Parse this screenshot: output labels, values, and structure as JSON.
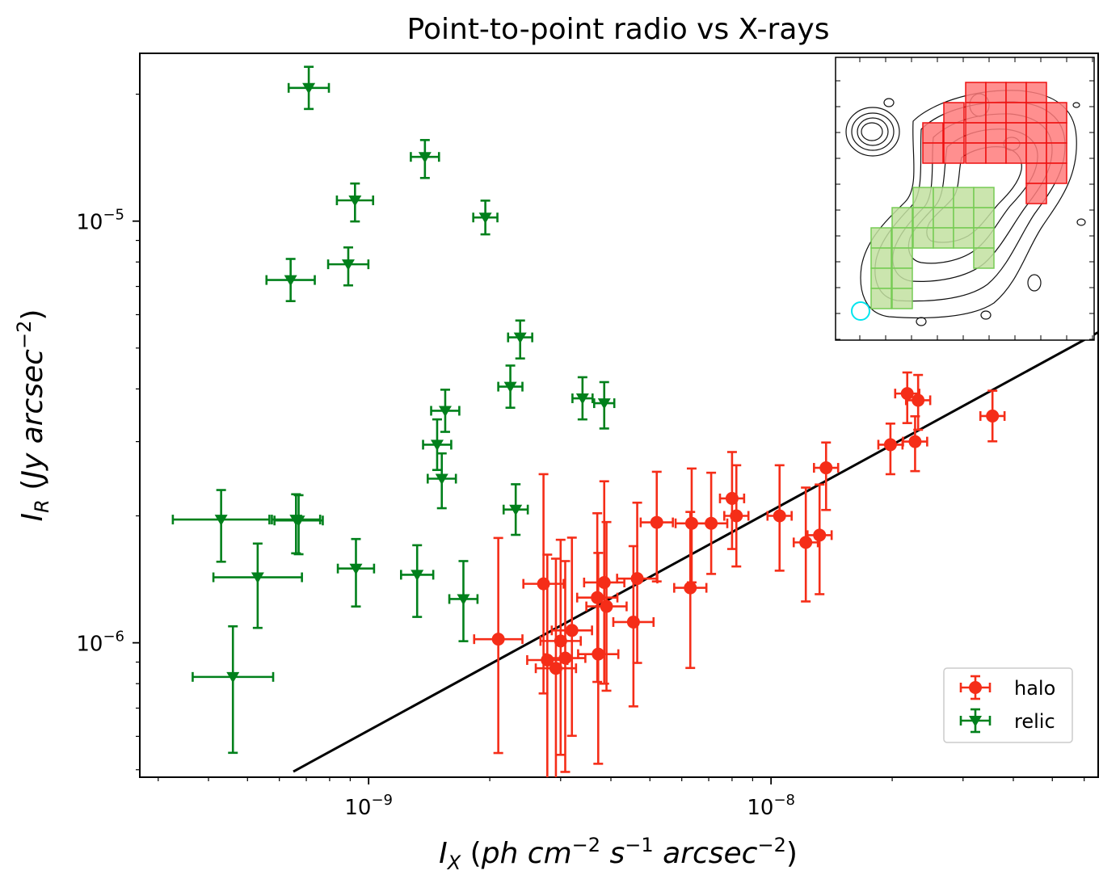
{
  "chart_data": {
    "type": "scatter",
    "title": "Point-to-point radio vs X-rays",
    "xlabel": "I_X (ph cm^-2 s^-1 arcsec^-2)",
    "ylabel": "I_R (Jy arcsec^-2)",
    "xscale": "log",
    "yscale": "log",
    "xlim": [
      2.7e-10,
      6.5e-08
    ],
    "ylim": [
      4.8e-07,
      2.5e-05
    ],
    "x_tick_labels": [
      {
        "value": 1e-09,
        "base": "10",
        "exp": "−9"
      },
      {
        "value": 1e-08,
        "base": "10",
        "exp": "−8"
      }
    ],
    "y_tick_labels": [
      {
        "value": 1e-06,
        "base": "10",
        "exp": "−6"
      },
      {
        "value": 1e-05,
        "base": "10",
        "exp": "−5"
      }
    ],
    "legend": {
      "position": "lower-right",
      "entries": [
        "halo",
        "relic"
      ]
    },
    "colors": {
      "halo": "#f52d18",
      "relic": "#00801b",
      "fit": "#000000"
    },
    "fit_line": {
      "x": [
        6.5e-10,
        6.5e-08
      ],
      "y": [
        4.95e-07,
        5.45e-06
      ]
    },
    "series": [
      {
        "name": "halo",
        "marker": "circle",
        "points": [
          {
            "x": 2.1e-09,
            "y": 1.02e-06,
            "ex": 0.06,
            "ey_lo": 0.27,
            "ey_hi": 0.24
          },
          {
            "x": 2.72e-09,
            "y": 1.38e-06,
            "ex": 0.05,
            "ey_lo": 0.26,
            "ey_hi": 0.26
          },
          {
            "x": 2.78e-09,
            "y": 9.1e-07,
            "ex": 0.05,
            "ey_lo": 0.29,
            "ey_hi": 0.25
          },
          {
            "x": 2.92e-09,
            "y": 8.7e-07,
            "ex": 0.05,
            "ey_lo": 0.32,
            "ey_hi": 0.26
          },
          {
            "x": 3e-09,
            "y": 1.01e-06,
            "ex": 0.05,
            "ey_lo": 0.27,
            "ey_hi": 0.24
          },
          {
            "x": 3.08e-09,
            "y": 9.2e-07,
            "ex": 0.05,
            "ey_lo": 0.27,
            "ey_hi": 0.23
          },
          {
            "x": 3.2e-09,
            "y": 1.07e-06,
            "ex": 0.05,
            "ey_lo": 0.25,
            "ey_hi": 0.22
          },
          {
            "x": 3.7e-09,
            "y": 1.28e-06,
            "ex": 0.05,
            "ey_lo": 0.2,
            "ey_hi": 0.2
          },
          {
            "x": 3.72e-09,
            "y": 9.4e-07,
            "ex": 0.05,
            "ey_lo": 0.26,
            "ey_hi": 0.24
          },
          {
            "x": 3.85e-09,
            "y": 1.39e-06,
            "ex": 0.05,
            "ey_lo": 0.24,
            "ey_hi": 0.24
          },
          {
            "x": 3.9e-09,
            "y": 1.22e-06,
            "ex": 0.05,
            "ey_lo": 0.2,
            "ey_hi": 0.2
          },
          {
            "x": 4.55e-09,
            "y": 1.12e-06,
            "ex": 0.05,
            "ey_lo": 0.2,
            "ey_hi": 0.18
          },
          {
            "x": 4.65e-09,
            "y": 1.42e-06,
            "ex": 0.05,
            "ey_lo": 0.2,
            "ey_hi": 0.18
          },
          {
            "x": 5.2e-09,
            "y": 1.93e-06,
            "ex": 0.04,
            "ey_lo": 0.14,
            "ey_hi": 0.12
          },
          {
            "x": 6.3e-09,
            "y": 1.35e-06,
            "ex": 0.04,
            "ey_lo": 0.19,
            "ey_hi": 0.18
          },
          {
            "x": 6.35e-09,
            "y": 1.92e-06,
            "ex": 0.04,
            "ey_lo": 0.14,
            "ey_hi": 0.13
          },
          {
            "x": 7.1e-09,
            "y": 1.92e-06,
            "ex": 0.04,
            "ey_lo": 0.12,
            "ey_hi": 0.12
          },
          {
            "x": 8e-09,
            "y": 2.2e-06,
            "ex": 0.03,
            "ey_lo": 0.12,
            "ey_hi": 0.11
          },
          {
            "x": 8.2e-09,
            "y": 2e-06,
            "ex": 0.03,
            "ey_lo": 0.12,
            "ey_hi": 0.12
          },
          {
            "x": 1.05e-08,
            "y": 2e-06,
            "ex": 0.03,
            "ey_lo": 0.13,
            "ey_hi": 0.12
          },
          {
            "x": 1.22e-08,
            "y": 1.73e-06,
            "ex": 0.03,
            "ey_lo": 0.14,
            "ey_hi": 0.13
          },
          {
            "x": 1.32e-08,
            "y": 1.8e-06,
            "ex": 0.03,
            "ey_lo": 0.14,
            "ey_hi": 0.12
          },
          {
            "x": 1.37e-08,
            "y": 2.6e-06,
            "ex": 0.03,
            "ey_lo": 0.1,
            "ey_hi": 0.06
          },
          {
            "x": 1.98e-08,
            "y": 2.95e-06,
            "ex": 0.03,
            "ey_lo": 0.07,
            "ey_hi": 0.05
          },
          {
            "x": 2.18e-08,
            "y": 3.9e-06,
            "ex": 0.03,
            "ey_lo": 0.07,
            "ey_hi": 0.05
          },
          {
            "x": 2.28e-08,
            "y": 3e-06,
            "ex": 0.03,
            "ey_lo": 0.07,
            "ey_hi": 0.06
          },
          {
            "x": 2.32e-08,
            "y": 3.76e-06,
            "ex": 0.03,
            "ey_lo": 0.07,
            "ey_hi": 0.06
          },
          {
            "x": 3.55e-08,
            "y": 3.45e-06,
            "ex": 0.03,
            "ey_lo": 0.06,
            "ey_hi": 0.06
          }
        ]
      },
      {
        "name": "relic",
        "marker": "triangle-down",
        "points": [
          {
            "x": 4.3e-10,
            "y": 1.96e-06,
            "ex": 0.12,
            "ey_lo": 0.1,
            "ey_hi": 0.07
          },
          {
            "x": 4.6e-10,
            "y": 8.3e-07,
            "ex": 0.1,
            "ey_lo": 0.18,
            "ey_hi": 0.12
          },
          {
            "x": 5.3e-10,
            "y": 1.43e-06,
            "ex": 0.11,
            "ey_lo": 0.12,
            "ey_hi": 0.08
          },
          {
            "x": 6.4e-10,
            "y": 7.25e-06,
            "ex": 0.06,
            "ey_lo": 0.05,
            "ey_hi": 0.05
          },
          {
            "x": 6.6e-10,
            "y": 1.96e-06,
            "ex": 0.06,
            "ey_lo": 0.08,
            "ey_hi": 0.06
          },
          {
            "x": 6.7e-10,
            "y": 1.95e-06,
            "ex": 0.06,
            "ey_lo": 0.08,
            "ey_hi": 0.06
          },
          {
            "x": 7.1e-10,
            "y": 2.07e-05,
            "ex": 0.05,
            "ey_lo": 0.05,
            "ey_hi": 0.05
          },
          {
            "x": 8.9e-10,
            "y": 7.9e-06,
            "ex": 0.05,
            "ey_lo": 0.05,
            "ey_hi": 0.04
          },
          {
            "x": 9.25e-10,
            "y": 1.12e-05,
            "ex": 0.045,
            "ey_lo": 0.05,
            "ey_hi": 0.04
          },
          {
            "x": 9.3e-10,
            "y": 1.5e-06,
            "ex": 0.045,
            "ey_lo": 0.09,
            "ey_hi": 0.07
          },
          {
            "x": 1.32e-09,
            "y": 1.45e-06,
            "ex": 0.04,
            "ey_lo": 0.1,
            "ey_hi": 0.07
          },
          {
            "x": 1.38e-09,
            "y": 1.42e-05,
            "ex": 0.035,
            "ey_lo": 0.05,
            "ey_hi": 0.04
          },
          {
            "x": 1.48e-09,
            "y": 2.95e-06,
            "ex": 0.035,
            "ey_lo": 0.06,
            "ey_hi": 0.06
          },
          {
            "x": 1.52e-09,
            "y": 2.45e-06,
            "ex": 0.035,
            "ey_lo": 0.07,
            "ey_hi": 0.06
          },
          {
            "x": 1.55e-09,
            "y": 3.55e-06,
            "ex": 0.035,
            "ey_lo": 0.05,
            "ey_hi": 0.05
          },
          {
            "x": 1.72e-09,
            "y": 1.27e-06,
            "ex": 0.035,
            "ey_lo": 0.1,
            "ey_hi": 0.09
          },
          {
            "x": 1.95e-09,
            "y": 1.02e-05,
            "ex": 0.03,
            "ey_lo": 0.04,
            "ey_hi": 0.04
          },
          {
            "x": 2.25e-09,
            "y": 4.05e-06,
            "ex": 0.03,
            "ey_lo": 0.05,
            "ey_hi": 0.05
          },
          {
            "x": 2.32e-09,
            "y": 2.07e-06,
            "ex": 0.03,
            "ey_lo": 0.06,
            "ey_hi": 0.06
          },
          {
            "x": 2.38e-09,
            "y": 5.3e-06,
            "ex": 0.03,
            "ey_lo": 0.05,
            "ey_hi": 0.04
          },
          {
            "x": 3.4e-09,
            "y": 3.8e-06,
            "ex": 0.025,
            "ey_lo": 0.05,
            "ey_hi": 0.05
          },
          {
            "x": 3.85e-09,
            "y": 3.7e-06,
            "ex": 0.025,
            "ey_lo": 0.06,
            "ey_hi": 0.05
          }
        ]
      }
    ]
  },
  "inset": {
    "description_colors": {
      "halo_fill": "#ff7b7b",
      "halo_edge": "#ee1111",
      "relic_fill": "#c2e0a0",
      "relic_edge": "#77cc55",
      "beam": "#00e5ee"
    },
    "halo_grid": "red squares",
    "relic_grid": "green squares"
  }
}
